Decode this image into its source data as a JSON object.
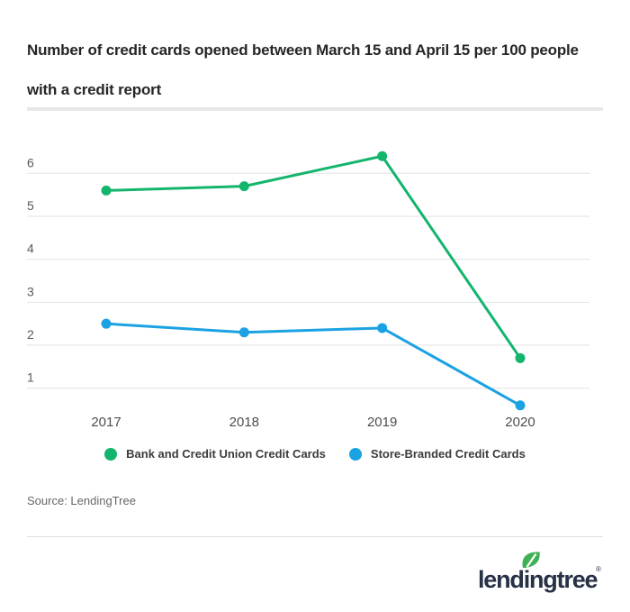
{
  "title": "Number of credit cards opened between March 15 and April 15 per 100 people with a credit report",
  "chart_data": {
    "type": "line",
    "categories": [
      "2017",
      "2018",
      "2019",
      "2020"
    ],
    "series": [
      {
        "name": "Bank and Credit Union Credit Cards",
        "color": "#13b56d",
        "values": [
          5.6,
          5.7,
          6.4,
          1.7
        ]
      },
      {
        "name": "Store-Branded Credit Cards",
        "color": "#1ba2e3",
        "values": [
          2.5,
          2.3,
          2.4,
          0.6
        ]
      }
    ],
    "y_ticks": [
      1,
      2,
      3,
      4,
      5,
      6
    ],
    "ylim": [
      0.5,
      6.6
    ],
    "xlabel": "",
    "ylabel": "",
    "grid": "horizontal",
    "legend_position": "bottom"
  },
  "source": "Source: LendingTree",
  "logo": {
    "text": "lendingtree",
    "reg": "®"
  },
  "colors": {
    "gridline": "#e2e2e2",
    "y_tick_label": "#595959",
    "x_tick_label": "#4d4d4d",
    "title_text": "#262626",
    "logo_navy": "#273246",
    "leaf_green": "#3db154"
  }
}
